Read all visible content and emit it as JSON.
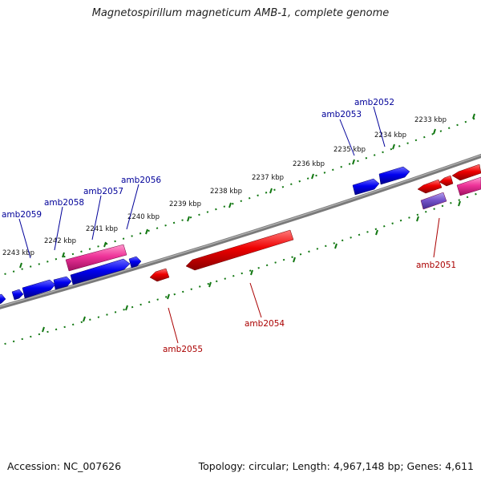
{
  "title": "Magnetospirillum magneticum AMB-1, complete genome",
  "accession": "Accession: NC_007626",
  "summary": "Topology: circular; Length: 4,967,148 bp; Genes: 4,611",
  "colors": {
    "forward_gene": "#0000ee",
    "reverse_gene": "#ee0000",
    "forward_label": "#000099",
    "reverse_label": "#aa0000",
    "pink_feature": "#ee3399",
    "purple_feature": "#7755cc",
    "backbone": "#808080",
    "ticks": "#117711"
  },
  "scale_ticks": [
    {
      "label": "2233 kbp"
    },
    {
      "label": "2234 kbp"
    },
    {
      "label": "2235 kbp"
    },
    {
      "label": "2236 kbp"
    },
    {
      "label": "2237 kbp"
    },
    {
      "label": "2238 kbp"
    },
    {
      "label": "2239 kbp"
    },
    {
      "label": "2240 kbp"
    },
    {
      "label": "2241 kbp"
    },
    {
      "label": "2242 kbp"
    },
    {
      "label": "2243 kbp"
    }
  ],
  "gene_labels": [
    {
      "name": "amb2052",
      "strand": "forward"
    },
    {
      "name": "amb2053",
      "strand": "forward"
    },
    {
      "name": "amb2056",
      "strand": "forward"
    },
    {
      "name": "amb2057",
      "strand": "forward"
    },
    {
      "name": "amb2058",
      "strand": "forward"
    },
    {
      "name": "amb2059",
      "strand": "forward"
    },
    {
      "name": "amb2051",
      "strand": "reverse"
    },
    {
      "name": "amb2054",
      "strand": "reverse"
    },
    {
      "name": "amb2055",
      "strand": "reverse"
    }
  ]
}
